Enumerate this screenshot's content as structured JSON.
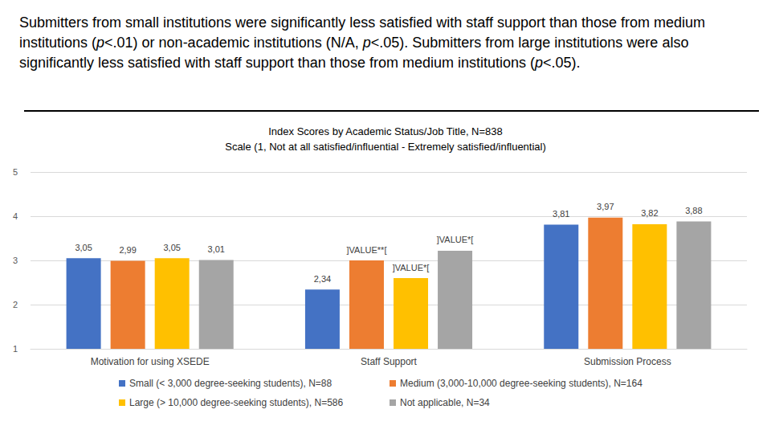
{
  "chart_data": {
    "type": "bar",
    "annotation": "Submitters from small institutions were significantly less satisfied with staff support than those from medium institutions (p<.01) or non-academic institutions (N/A, p<.05). Submitters from large institutions were also significantly less satisfied with staff support than those from medium institutions (p<.05).",
    "title": "Index Scores by Academic Status/Job Title, N=838",
    "subtitle": "Scale (1, Not at all satisfied/influential - Extremely satisfied/influential)",
    "categories": [
      "Motivation for using XSEDE",
      "Staff Support",
      "Submission Process"
    ],
    "series": [
      {
        "name": "Small (< 3,000 degree-seeking students), N=88",
        "color": "#4472c4",
        "values": [
          3.05,
          2.34,
          3.81
        ],
        "value_labels": [
          "3,05",
          "2,34",
          "3,81"
        ]
      },
      {
        "name": "Medium (3,000-10,000 degree-seeking students), N=164",
        "color": "#ed7d31",
        "values": [
          2.99,
          3.0,
          3.97
        ],
        "value_labels": [
          "2,99",
          "]VALUE**[",
          "3,97"
        ]
      },
      {
        "name": "Large (> 10,000 degree-seeking students), N=586",
        "color": "#ffc000",
        "values": [
          3.05,
          2.6,
          3.82
        ],
        "value_labels": [
          "3,05",
          "]VALUE*[",
          "3,82"
        ]
      },
      {
        "name": "Not applicable, N=34",
        "color": "#a5a5a5",
        "values": [
          3.01,
          3.22,
          3.88
        ],
        "value_labels": [
          "3,01",
          "]VALUE*[",
          "3,88"
        ]
      }
    ],
    "ylim": [
      1,
      5
    ],
    "yticks": [
      1,
      2,
      3,
      4,
      5
    ],
    "grid": true,
    "legend": "bottom",
    "data_labels": true
  }
}
